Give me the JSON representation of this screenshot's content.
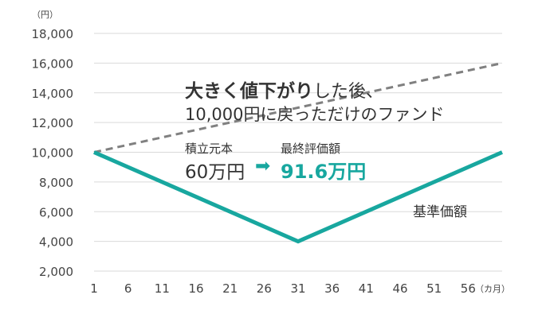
{
  "chart_data": {
    "type": "line",
    "x": [
      1,
      6,
      11,
      16,
      21,
      26,
      31,
      36,
      41,
      46,
      51,
      56,
      61
    ],
    "xticks": [
      "1",
      "6",
      "11",
      "16",
      "21",
      "26",
      "31",
      "36",
      "41",
      "46",
      "51",
      "56"
    ],
    "xunit": "（カ月）",
    "yunit": "（円）",
    "ylim": [
      2000,
      18000
    ],
    "yticks": [
      "2,000",
      "4,000",
      "6,000",
      "8,000",
      "10,000",
      "12,000",
      "14,000",
      "16,000",
      "18,000"
    ],
    "ytick_values": [
      2000,
      4000,
      6000,
      8000,
      10000,
      12000,
      14000,
      16000,
      18000
    ],
    "grid": true,
    "series": [
      {
        "name": "基準価額",
        "style": "solid",
        "color": "#18a79f",
        "points": [
          [
            1,
            10000
          ],
          [
            31,
            4000
          ],
          [
            61,
            10000
          ]
        ]
      },
      {
        "name": "",
        "style": "dashed",
        "color": "#808080",
        "points": [
          [
            1,
            10000
          ],
          [
            61,
            16000
          ]
        ]
      }
    ],
    "annotations": {
      "headline_bold": "大きく値下がり",
      "headline_rest": "した後、",
      "subline": "10,000円に戻っただけのファンド",
      "principal_label": "積立元本",
      "final_label": "最終評価額",
      "principal_value": "60万円",
      "arrow": "➡",
      "final_value": "91.6万円"
    }
  }
}
